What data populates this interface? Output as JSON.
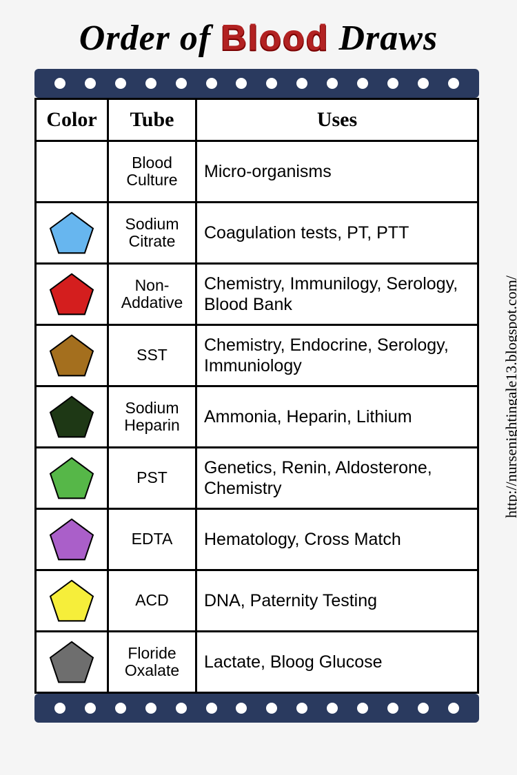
{
  "title": {
    "part1": "Order of ",
    "blood": "Blood",
    "part3": " Draws"
  },
  "source_url": "http://nursenightingale13.blogspot.com/",
  "decor": {
    "film_strip_color": "#2a3a5f",
    "dot_color": "#ffffff",
    "dot_count": 14
  },
  "table": {
    "columns": [
      "Color",
      "Tube",
      "Uses"
    ],
    "rows": [
      {
        "pentagon": null,
        "tube": "Blood Culture",
        "uses": "Micro-organisms"
      },
      {
        "pentagon": {
          "fill": "#67b6ef",
          "stroke": "#000000"
        },
        "tube": "Sodium Citrate",
        "uses": "Coagulation tests, PT, PTT"
      },
      {
        "pentagon": {
          "fill": "#d41e1e",
          "stroke": "#000000"
        },
        "tube": "Non-Addative",
        "uses": "Chemistry, Immunilogy, Serology, Blood Bank"
      },
      {
        "pentagon": {
          "fill": "#a46f1e",
          "stroke": "#000000"
        },
        "tube": "SST",
        "uses": "Chemistry, Endocrine, Serology, Immuniology"
      },
      {
        "pentagon": {
          "fill": "#1e3815",
          "stroke": "#000000"
        },
        "tube": "Sodium Heparin",
        "uses": "Ammonia, Heparin, Lithium"
      },
      {
        "pentagon": {
          "fill": "#56b748",
          "stroke": "#000000"
        },
        "tube": "PST",
        "uses": "Genetics, Renin, Aldosterone, Chemistry"
      },
      {
        "pentagon": {
          "fill": "#aa5fc9",
          "stroke": "#000000"
        },
        "tube": "EDTA",
        "uses": "Hematology, Cross Match"
      },
      {
        "pentagon": {
          "fill": "#f6ee3a",
          "stroke": "#000000"
        },
        "tube": "ACD",
        "uses": "DNA, Paternity Testing"
      },
      {
        "pentagon": {
          "fill": "#6e6e6e",
          "stroke": "#000000"
        },
        "tube": "Floride Oxalate",
        "uses": "Lactate, Bloog Glucose"
      }
    ]
  }
}
